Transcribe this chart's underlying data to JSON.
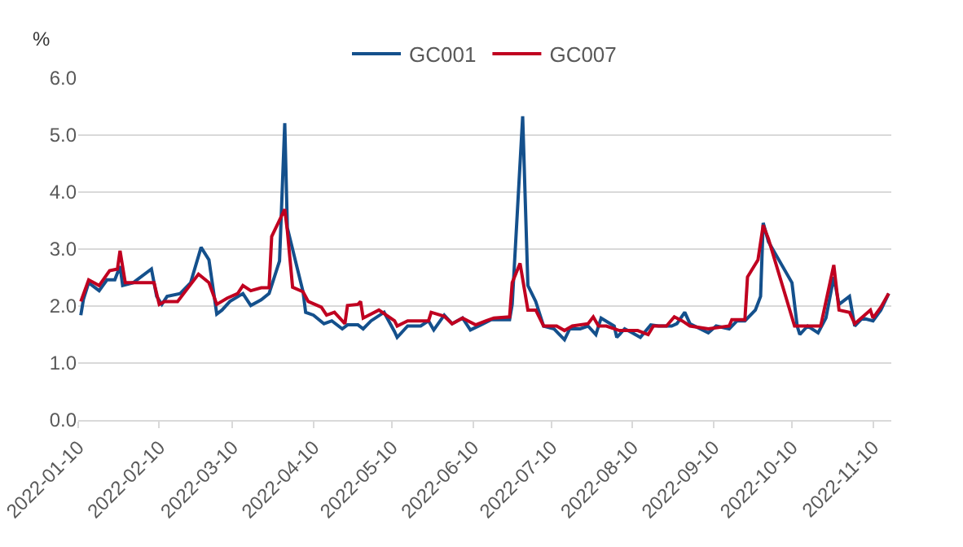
{
  "chart_data": {
    "type": "line",
    "ylabel": "%",
    "legend": "top",
    "grid": "y",
    "line_style": "solid",
    "marker": "none",
    "xlim": [
      "2022-01-10",
      "2022-11-17"
    ],
    "xticks": [
      "2022-01-10",
      "2022-02-10",
      "2022-03-10",
      "2022-04-10",
      "2022-05-10",
      "2022-06-10",
      "2022-07-10",
      "2022-08-10",
      "2022-09-10",
      "2022-10-10",
      "2022-11-10"
    ],
    "ylim": [
      0,
      6
    ],
    "yticks": [
      {
        "value": 0,
        "label": "0.0"
      },
      {
        "value": 1,
        "label": "1.0"
      },
      {
        "value": 2,
        "label": "2.0"
      },
      {
        "value": 3,
        "label": "3.0"
      },
      {
        "value": 4,
        "label": "4.0"
      },
      {
        "value": 5,
        "label": "5.0"
      },
      {
        "value": 6,
        "label": "6.0"
      }
    ],
    "series": [
      {
        "name": "GC001",
        "color": "#14508c",
        "x": [
          "2022-01-11",
          "2022-01-12",
          "2022-01-14",
          "2022-01-18",
          "2022-01-21",
          "2022-01-24",
          "2022-01-26",
          "2022-01-27",
          "2022-01-31",
          "2022-02-07",
          "2022-02-09",
          "2022-02-11",
          "2022-02-13",
          "2022-02-18",
          "2022-02-22",
          "2022-02-26",
          "2022-03-01",
          "2022-03-04",
          "2022-03-06",
          "2022-03-09",
          "2022-03-14",
          "2022-03-17",
          "2022-03-21",
          "2022-03-24",
          "2022-03-28",
          "2022-03-30",
          "2022-03-31",
          "2022-04-06",
          "2022-04-07",
          "2022-04-10",
          "2022-04-14",
          "2022-04-17",
          "2022-04-21",
          "2022-04-23",
          "2022-04-27",
          "2022-04-29",
          "2022-05-02",
          "2022-05-07",
          "2022-05-11",
          "2022-05-12",
          "2022-05-16",
          "2022-05-21",
          "2022-05-24",
          "2022-05-26",
          "2022-05-30",
          "2022-06-02",
          "2022-06-06",
          "2022-06-09",
          "2022-06-13",
          "2022-06-17",
          "2022-06-24",
          "2022-06-25",
          "2022-06-29",
          "2022-07-01",
          "2022-07-04",
          "2022-07-07",
          "2022-07-11",
          "2022-07-15",
          "2022-07-17",
          "2022-07-21",
          "2022-07-24",
          "2022-07-27",
          "2022-07-29",
          "2022-08-03",
          "2022-08-04",
          "2022-08-07",
          "2022-08-10",
          "2022-08-13",
          "2022-08-17",
          "2022-08-20",
          "2022-08-25",
          "2022-08-27",
          "2022-08-30",
          "2022-09-01",
          "2022-09-08",
          "2022-09-11",
          "2022-09-16",
          "2022-09-19",
          "2022-09-22",
          "2022-09-26",
          "2022-09-28",
          "2022-09-29",
          "2022-10-01",
          "2022-10-10",
          "2022-10-12",
          "2022-10-13",
          "2022-10-16",
          "2022-10-20",
          "2022-10-23",
          "2022-10-26",
          "2022-10-28",
          "2022-11-01",
          "2022-11-03",
          "2022-11-06",
          "2022-11-10",
          "2022-11-13",
          "2022-11-16"
        ],
        "values": [
          1.84,
          2.12,
          2.41,
          2.27,
          2.46,
          2.46,
          2.7,
          2.36,
          2.41,
          2.65,
          2.17,
          2.03,
          2.17,
          2.22,
          2.41,
          3.03,
          2.81,
          1.86,
          1.93,
          2.08,
          2.22,
          2.01,
          2.11,
          2.22,
          2.79,
          5.21,
          3.37,
          2.25,
          1.89,
          1.84,
          1.69,
          1.74,
          1.6,
          1.67,
          1.67,
          1.6,
          1.74,
          1.89,
          1.55,
          1.45,
          1.65,
          1.65,
          1.74,
          1.58,
          1.84,
          1.69,
          1.79,
          1.58,
          1.67,
          1.76,
          1.76,
          2.03,
          5.33,
          2.36,
          2.08,
          1.65,
          1.6,
          1.41,
          1.6,
          1.6,
          1.65,
          1.5,
          1.79,
          1.65,
          1.45,
          1.6,
          1.53,
          1.45,
          1.67,
          1.65,
          1.65,
          1.69,
          1.89,
          1.69,
          1.53,
          1.65,
          1.6,
          1.74,
          1.74,
          1.93,
          2.17,
          3.46,
          3.13,
          2.41,
          1.65,
          1.5,
          1.65,
          1.53,
          1.79,
          2.51,
          2.03,
          2.17,
          1.65,
          1.79,
          1.74,
          1.93,
          2.22
        ]
      },
      {
        "name": "GC007",
        "color": "#c00020",
        "x": [
          "2022-01-11",
          "2022-01-14",
          "2022-01-18",
          "2022-01-22",
          "2022-01-25",
          "2022-01-26",
          "2022-01-28",
          "2022-01-31",
          "2022-02-08",
          "2022-02-10",
          "2022-02-12",
          "2022-02-17",
          "2022-02-21",
          "2022-02-25",
          "2022-03-01",
          "2022-03-04",
          "2022-03-08",
          "2022-03-12",
          "2022-03-14",
          "2022-03-17",
          "2022-03-21",
          "2022-03-24",
          "2022-03-25",
          "2022-03-30",
          "2022-03-31",
          "2022-04-02",
          "2022-04-06",
          "2022-04-08",
          "2022-04-13",
          "2022-04-15",
          "2022-04-18",
          "2022-04-22",
          "2022-04-23",
          "2022-04-27",
          "2022-04-28",
          "2022-04-29",
          "2022-05-05",
          "2022-05-11",
          "2022-05-12",
          "2022-05-16",
          "2022-05-24",
          "2022-05-25",
          "2022-05-30",
          "2022-06-02",
          "2022-06-06",
          "2022-06-11",
          "2022-06-15",
          "2022-06-18",
          "2022-06-24",
          "2022-06-25",
          "2022-06-28",
          "2022-07-01",
          "2022-07-04",
          "2022-07-07",
          "2022-07-12",
          "2022-07-15",
          "2022-07-18",
          "2022-07-24",
          "2022-07-26",
          "2022-07-28",
          "2022-07-31",
          "2022-08-05",
          "2022-08-12",
          "2022-08-16",
          "2022-08-18",
          "2022-08-23",
          "2022-08-26",
          "2022-08-29",
          "2022-09-01",
          "2022-09-08",
          "2022-09-16",
          "2022-09-17",
          "2022-09-22",
          "2022-09-23",
          "2022-09-27",
          "2022-09-29",
          "2022-10-01",
          "2022-10-11",
          "2022-10-17",
          "2022-10-21",
          "2022-10-26",
          "2022-10-28",
          "2022-11-01",
          "2022-11-03",
          "2022-11-09",
          "2022-11-10",
          "2022-11-13",
          "2022-11-16"
        ],
        "values": [
          2.08,
          2.46,
          2.36,
          2.62,
          2.65,
          2.97,
          2.41,
          2.41,
          2.41,
          2.03,
          2.08,
          2.08,
          2.32,
          2.56,
          2.41,
          2.03,
          2.14,
          2.22,
          2.36,
          2.27,
          2.32,
          2.32,
          3.22,
          3.7,
          3.32,
          2.33,
          2.25,
          2.08,
          1.98,
          1.84,
          1.89,
          1.69,
          2.01,
          2.03,
          2.08,
          1.79,
          1.93,
          1.74,
          1.65,
          1.74,
          1.74,
          1.89,
          1.82,
          1.69,
          1.79,
          1.67,
          1.74,
          1.79,
          1.81,
          2.41,
          2.75,
          1.93,
          1.93,
          1.65,
          1.65,
          1.57,
          1.65,
          1.69,
          1.81,
          1.65,
          1.65,
          1.57,
          1.57,
          1.5,
          1.65,
          1.65,
          1.81,
          1.74,
          1.65,
          1.6,
          1.65,
          1.76,
          1.76,
          2.51,
          2.81,
          3.42,
          3.18,
          1.65,
          1.65,
          1.65,
          2.72,
          1.93,
          1.89,
          1.69,
          1.93,
          1.79,
          1.98,
          2.22
        ]
      }
    ]
  }
}
